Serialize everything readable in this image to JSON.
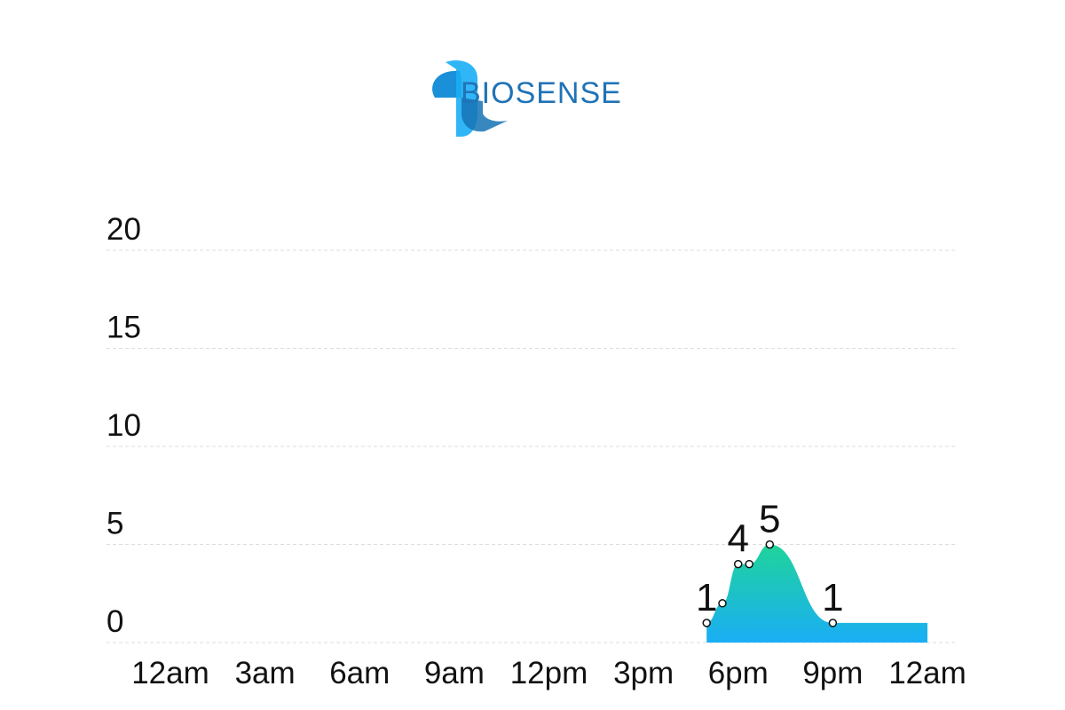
{
  "brand": {
    "name": "BIOSENSE"
  },
  "colors": {
    "area_top": "#1fd49a",
    "area_bottom": "#1aaef5",
    "grid": "#dddddd",
    "point_stroke": "#111111",
    "brand": "#1f73b6"
  },
  "chart_data": {
    "type": "area",
    "x_unit": "hours",
    "xlim": [
      0,
      24
    ],
    "ylim": [
      0,
      20
    ],
    "y_ticks": [
      0,
      5,
      10,
      15,
      20
    ],
    "x_ticks": [
      {
        "value": 0,
        "label": "12am"
      },
      {
        "value": 3,
        "label": "3am"
      },
      {
        "value": 6,
        "label": "6am"
      },
      {
        "value": 9,
        "label": "9am"
      },
      {
        "value": 12,
        "label": "12pm"
      },
      {
        "value": 15,
        "label": "3pm"
      },
      {
        "value": 18,
        "label": "6pm"
      },
      {
        "value": 21,
        "label": "9pm"
      },
      {
        "value": 24,
        "label": "12am"
      }
    ],
    "grid": true,
    "points": [
      {
        "x": 17.0,
        "y": 1
      },
      {
        "x": 17.5,
        "y": 2
      },
      {
        "x": 18.0,
        "y": 4
      },
      {
        "x": 18.35,
        "y": 4
      },
      {
        "x": 19.0,
        "y": 5
      },
      {
        "x": 21.0,
        "y": 1
      }
    ],
    "flat_tail": {
      "x_end": 24.0,
      "y": 1
    },
    "data_labels": [
      {
        "x": 17.0,
        "y": 1,
        "text": "1"
      },
      {
        "x": 18.0,
        "y": 4,
        "text": "4"
      },
      {
        "x": 19.0,
        "y": 5,
        "text": "5"
      },
      {
        "x": 21.0,
        "y": 1,
        "text": "1"
      }
    ]
  }
}
